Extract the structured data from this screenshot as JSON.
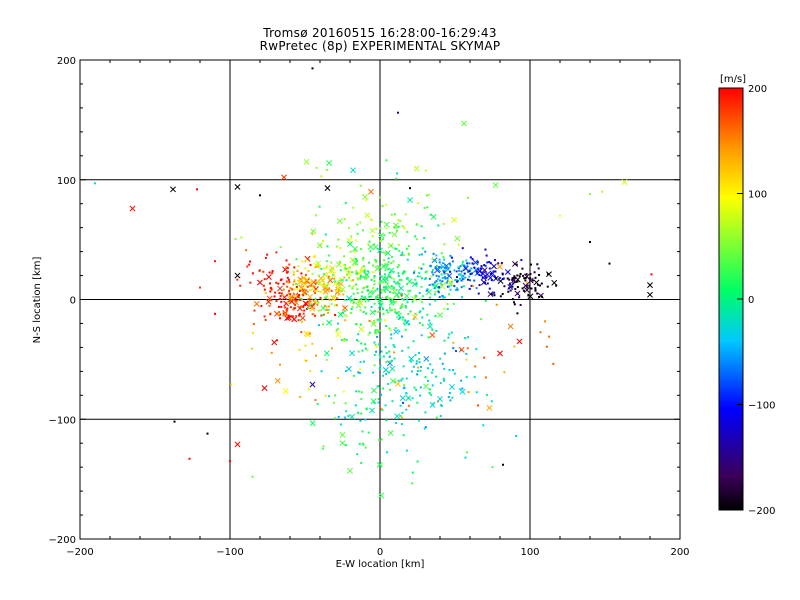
{
  "chart_data": {
    "type": "scatter",
    "title": "Tromsø 20160515 16:28:00-16:29:43",
    "subtitle": "RwPretec (8p) EXPERIMENTAL SKYMAP",
    "xlabel": "E-W location [km]",
    "ylabel": "N-S location [km]",
    "xlim": [
      -200,
      200
    ],
    "ylim": [
      -200,
      200
    ],
    "xticks": [
      -200,
      -100,
      0,
      100,
      200
    ],
    "yticks": [
      -200,
      -100,
      0,
      100,
      200
    ],
    "grid": true,
    "colorbar": {
      "unit": "[m/s]",
      "range": [
        -200,
        200
      ],
      "ticks": [
        200,
        100,
        0,
        -100,
        -200
      ],
      "placement": "right",
      "colormap": [
        "#000000",
        "#3c0058",
        "#0000ff",
        "#00c8ff",
        "#00ff64",
        "#ffff00",
        "#ff9600",
        "#ff0000"
      ]
    },
    "markers": {
      "dot": "detection",
      "x": "large-magnitude detection"
    },
    "clusters": [
      {
        "cx": -60,
        "cy": -5,
        "sx": 10,
        "sy": 10,
        "n": 110,
        "v": 190,
        "xfrac": 0.2
      },
      {
        "cx": -45,
        "cy": 5,
        "sx": 12,
        "sy": 10,
        "n": 110,
        "v": 140,
        "xfrac": 0.25
      },
      {
        "cx": -70,
        "cy": 20,
        "sx": 12,
        "sy": 10,
        "n": 40,
        "v": 195,
        "xfrac": 0.1
      },
      {
        "cx": -35,
        "cy": 20,
        "sx": 15,
        "sy": 12,
        "n": 60,
        "v": 90,
        "xfrac": 0.15
      },
      {
        "cx": -10,
        "cy": 10,
        "sx": 20,
        "sy": 20,
        "n": 180,
        "v": 40,
        "xfrac": 0.1
      },
      {
        "cx": 10,
        "cy": 5,
        "sx": 22,
        "sy": 20,
        "n": 220,
        "v": 10,
        "xfrac": 0.1
      },
      {
        "cx": 45,
        "cy": 20,
        "sx": 10,
        "sy": 8,
        "n": 110,
        "v": -60,
        "xfrac": 0.15
      },
      {
        "cx": 70,
        "cy": 20,
        "sx": 10,
        "sy": 8,
        "n": 70,
        "v": -120,
        "xfrac": 0.15
      },
      {
        "cx": 95,
        "cy": 15,
        "sx": 10,
        "sy": 8,
        "n": 80,
        "v": -195,
        "xfrac": 0.15
      },
      {
        "cx": 20,
        "cy": -60,
        "sx": 25,
        "sy": 25,
        "n": 160,
        "v": -30,
        "xfrac": 0.1
      },
      {
        "cx": 0,
        "cy": -90,
        "sx": 20,
        "sy": 30,
        "n": 70,
        "v": 20,
        "xfrac": 0.12
      },
      {
        "cx": 10,
        "cy": 60,
        "sx": 20,
        "sy": 20,
        "n": 40,
        "v": 30,
        "xfrac": 0.15
      },
      {
        "cx": 0,
        "cy": 40,
        "sx": 40,
        "sy": 40,
        "n": 70,
        "v": 60,
        "xfrac": 0.2
      },
      {
        "cx": -40,
        "cy": -50,
        "sx": 30,
        "sy": 30,
        "n": 40,
        "v": 120,
        "xfrac": 0.15
      },
      {
        "cx": 60,
        "cy": -40,
        "sx": 30,
        "sy": 30,
        "n": 30,
        "v": 150,
        "xfrac": 0.15
      }
    ],
    "points": [
      {
        "x": -138,
        "y": 92,
        "v": -200,
        "m": "x"
      },
      {
        "x": -95,
        "y": 94,
        "v": -200,
        "m": "x"
      },
      {
        "x": -165,
        "y": 76,
        "v": 195,
        "m": "x"
      },
      {
        "x": -190,
        "y": 97,
        "v": -20,
        "m": "dot"
      },
      {
        "x": -45,
        "y": 193,
        "v": -200,
        "m": "dot"
      },
      {
        "x": 12,
        "y": 156,
        "v": -140,
        "m": "dot"
      },
      {
        "x": 56,
        "y": 147,
        "v": 40,
        "m": "x"
      },
      {
        "x": -49,
        "y": 115,
        "v": 60,
        "m": "x"
      },
      {
        "x": -34,
        "y": 114,
        "v": 20,
        "m": "x"
      },
      {
        "x": -64,
        "y": 102,
        "v": 180,
        "m": "x"
      },
      {
        "x": -18,
        "y": 108,
        "v": -20,
        "m": "x"
      },
      {
        "x": -35,
        "y": 93,
        "v": -200,
        "m": "x"
      },
      {
        "x": -6,
        "y": 90,
        "v": 160,
        "m": "x"
      },
      {
        "x": 20,
        "y": 93,
        "v": -200,
        "m": "dot"
      },
      {
        "x": 20,
        "y": 83,
        "v": -10,
        "m": "x"
      },
      {
        "x": 163,
        "y": 98,
        "v": 80,
        "m": "x"
      },
      {
        "x": 140,
        "y": 88,
        "v": 50,
        "m": "dot"
      },
      {
        "x": 148,
        "y": 90,
        "v": 70,
        "m": "dot"
      },
      {
        "x": 120,
        "y": 70,
        "v": 100,
        "m": "dot"
      },
      {
        "x": -122,
        "y": 92,
        "v": 200,
        "m": "dot"
      },
      {
        "x": -80,
        "y": 87,
        "v": -200,
        "m": "dot"
      },
      {
        "x": -95,
        "y": 20,
        "v": -200,
        "m": "x"
      },
      {
        "x": -110,
        "y": 32,
        "v": 190,
        "m": "dot"
      },
      {
        "x": -120,
        "y": 10,
        "v": 180,
        "m": "dot"
      },
      {
        "x": -110,
        "y": -12,
        "v": 200,
        "m": "dot"
      },
      {
        "x": 180,
        "y": 12,
        "v": -200,
        "m": "x"
      },
      {
        "x": 180,
        "y": 4,
        "v": -200,
        "m": "x"
      },
      {
        "x": 181,
        "y": 21,
        "v": 200,
        "m": "dot"
      },
      {
        "x": 153,
        "y": 30,
        "v": -200,
        "m": "dot"
      },
      {
        "x": 140,
        "y": 48,
        "v": -200,
        "m": "dot"
      },
      {
        "x": 80,
        "y": -45,
        "v": 200,
        "m": "x"
      },
      {
        "x": 93,
        "y": -35,
        "v": 200,
        "m": "x"
      },
      {
        "x": -77,
        "y": -74,
        "v": 200,
        "m": "x"
      },
      {
        "x": -45,
        "y": -71,
        "v": -140,
        "m": "x"
      },
      {
        "x": -137,
        "y": -102,
        "v": -200,
        "m": "dot"
      },
      {
        "x": -115,
        "y": -112,
        "v": -200,
        "m": "dot"
      },
      {
        "x": -95,
        "y": -121,
        "v": 200,
        "m": "x"
      },
      {
        "x": -127,
        "y": -133,
        "v": 200,
        "m": "dot"
      },
      {
        "x": -100,
        "y": -135,
        "v": 200,
        "m": "dot"
      },
      {
        "x": -20,
        "y": -143,
        "v": 40,
        "m": "x"
      },
      {
        "x": -85,
        "y": -148,
        "v": 40,
        "m": "dot"
      },
      {
        "x": 82,
        "y": -138,
        "v": -200,
        "m": "dot"
      },
      {
        "x": 75,
        "y": -140,
        "v": 30,
        "m": "dot"
      },
      {
        "x": 57,
        "y": -132,
        "v": -20,
        "m": "dot"
      },
      {
        "x": -25,
        "y": -120,
        "v": 30,
        "m": "x"
      },
      {
        "x": -25,
        "y": -113,
        "v": 40,
        "m": "x"
      },
      {
        "x": 55,
        "y": -77,
        "v": -30,
        "m": "x"
      },
      {
        "x": 48,
        "y": -73,
        "v": -30,
        "m": "x"
      },
      {
        "x": 40,
        "y": -83,
        "v": -30,
        "m": "x"
      },
      {
        "x": 35,
        "y": -88,
        "v": -30,
        "m": "x"
      }
    ]
  }
}
